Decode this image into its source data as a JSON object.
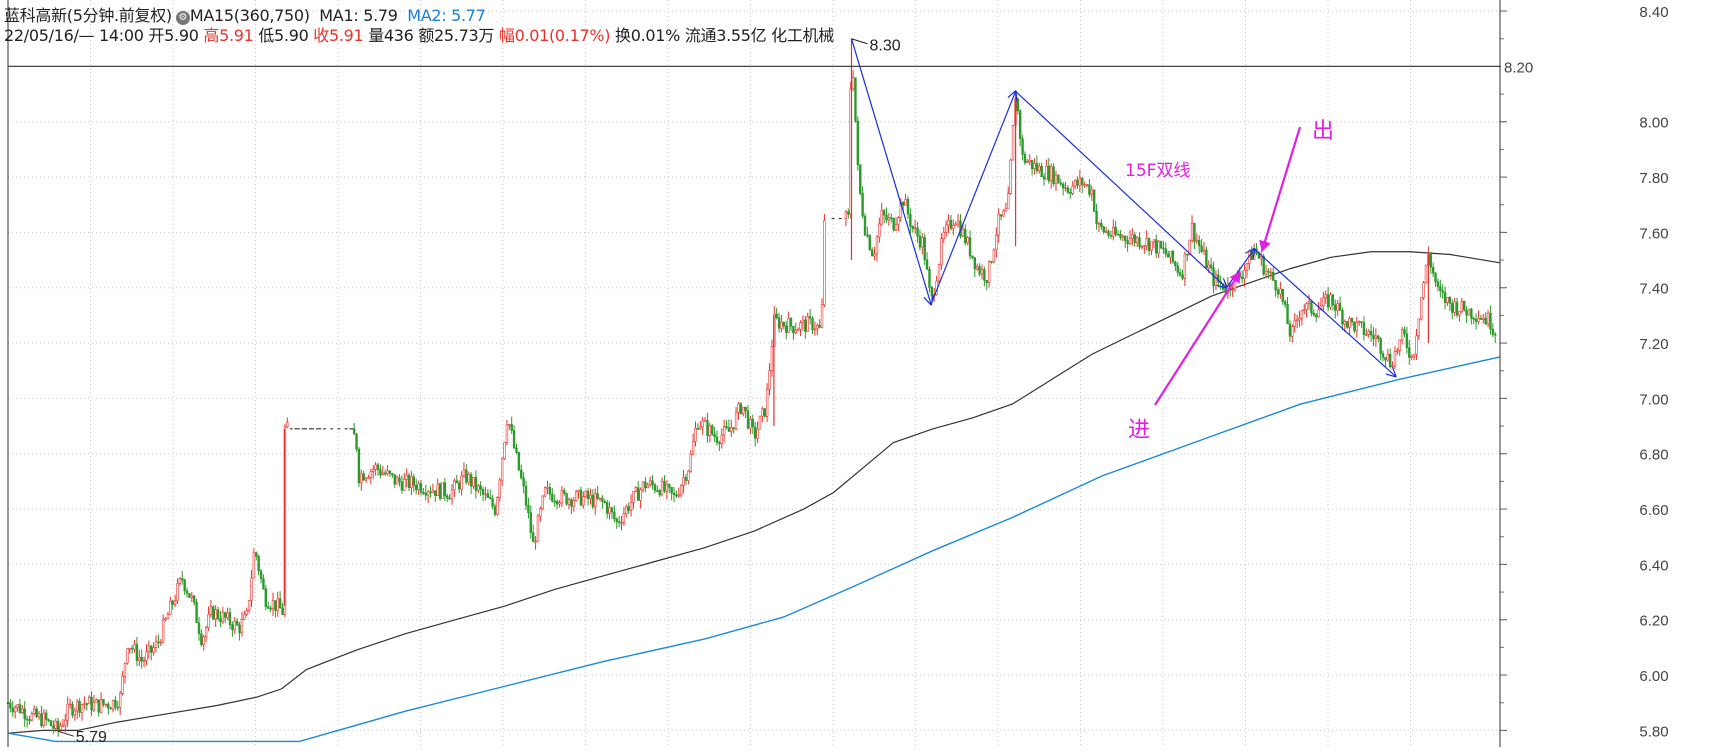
{
  "header": {
    "name": "蓝科高新(5分钟.前复权)",
    "ma15": "MA15(360,750)",
    "ma1": "MA1: 5.79",
    "ma2": "MA2: 5.77",
    "date": "22/05/16/— 14:00",
    "open_label": "开",
    "open": "5.90",
    "high_label": "高",
    "high": "5.91",
    "low_label": "低",
    "low": "5.90",
    "close_label": "收",
    "close": "5.91",
    "vol_label": "量",
    "vol": "436",
    "amount_label": "额",
    "amount": "25.73万",
    "range_label": "幅",
    "range": "0.01(0.17%)",
    "turnover": "换0.01%",
    "float": "流通3.55亿",
    "industry": "化工机械"
  },
  "colors": {
    "up": "#e8322c",
    "down": "#2a9a2a",
    "ma1": "#333333",
    "ma2": "#1a8ad8",
    "trend": "#1a2fd8",
    "annotation": "#e020e0",
    "grid": "#c8c8c8"
  },
  "chart_data": {
    "type": "candlestick",
    "yticks": [
      "8.40",
      "8.20",
      "8.00",
      "7.80",
      "7.60",
      "7.40",
      "7.20",
      "7.00",
      "6.80",
      "6.60",
      "6.40",
      "6.20",
      "6.00",
      "5.80"
    ],
    "ylim": [
      5.74,
      8.44
    ],
    "current_price": "8.20",
    "high_marker": "8.30",
    "low_marker": "5.79",
    "annotations": {
      "entry": "进",
      "exit": "出",
      "note": "15F双线"
    },
    "ma1_path": [
      [
        0,
        5.79
      ],
      [
        35,
        5.8
      ],
      [
        70,
        5.8
      ],
      [
        110,
        5.83
      ],
      [
        160,
        5.86
      ],
      [
        210,
        5.89
      ],
      [
        250,
        5.92
      ],
      [
        275,
        5.95
      ],
      [
        300,
        6.02
      ],
      [
        350,
        6.09
      ],
      [
        400,
        6.15
      ],
      [
        450,
        6.2
      ],
      [
        500,
        6.25
      ],
      [
        550,
        6.31
      ],
      [
        600,
        6.36
      ],
      [
        650,
        6.41
      ],
      [
        700,
        6.46
      ],
      [
        750,
        6.52
      ],
      [
        800,
        6.6
      ],
      [
        830,
        6.66
      ],
      [
        860,
        6.75
      ],
      [
        890,
        6.84
      ],
      [
        930,
        6.89
      ],
      [
        970,
        6.93
      ],
      [
        1010,
        6.98
      ],
      [
        1050,
        7.07
      ],
      [
        1090,
        7.16
      ],
      [
        1130,
        7.23
      ],
      [
        1170,
        7.3
      ],
      [
        1210,
        7.37
      ],
      [
        1250,
        7.42
      ],
      [
        1290,
        7.47
      ],
      [
        1330,
        7.51
      ],
      [
        1370,
        7.53
      ],
      [
        1410,
        7.53
      ],
      [
        1450,
        7.52
      ],
      [
        1500,
        7.49
      ]
    ],
    "ma2_path": [
      [
        0,
        5.79
      ],
      [
        48,
        5.76
      ],
      [
        293,
        5.76
      ],
      [
        400,
        5.87
      ],
      [
        500,
        5.96
      ],
      [
        600,
        6.05
      ],
      [
        700,
        6.13
      ],
      [
        780,
        6.21
      ],
      [
        850,
        6.32
      ],
      [
        930,
        6.45
      ],
      [
        1010,
        6.57
      ],
      [
        1100,
        6.72
      ],
      [
        1200,
        6.85
      ],
      [
        1300,
        6.98
      ],
      [
        1400,
        7.07
      ],
      [
        1500,
        7.15
      ]
    ],
    "price_path": [
      [
        0,
        5.9
      ],
      [
        12,
        5.88
      ],
      [
        24,
        5.85
      ],
      [
        36,
        5.84
      ],
      [
        50,
        5.8
      ],
      [
        62,
        5.88
      ],
      [
        76,
        5.9
      ],
      [
        90,
        5.89
      ],
      [
        105,
        5.9
      ],
      [
        113,
        5.92
      ],
      [
        120,
        6.12
      ],
      [
        135,
        6.05
      ],
      [
        150,
        6.11
      ],
      [
        160,
        6.21
      ],
      [
        175,
        6.35
      ],
      [
        185,
        6.27
      ],
      [
        195,
        6.13
      ],
      [
        205,
        6.23
      ],
      [
        220,
        6.2
      ],
      [
        232,
        6.17
      ],
      [
        240,
        6.21
      ],
      [
        248,
        6.46
      ],
      [
        258,
        6.28
      ],
      [
        270,
        6.25
      ],
      [
        276,
        6.23
      ],
      [
        278,
        6.89
      ],
      [
        300,
        6.86
      ],
      [
        350,
        6.86
      ],
      [
        352,
        6.72
      ],
      [
        370,
        6.75
      ],
      [
        390,
        6.7
      ],
      [
        410,
        6.69
      ],
      [
        430,
        6.67
      ],
      [
        445,
        6.66
      ],
      [
        460,
        6.72
      ],
      [
        475,
        6.66
      ],
      [
        490,
        6.6
      ],
      [
        502,
        6.94
      ],
      [
        510,
        6.8
      ],
      [
        520,
        6.64
      ],
      [
        528,
        6.47
      ],
      [
        540,
        6.66
      ],
      [
        560,
        6.64
      ],
      [
        580,
        6.64
      ],
      [
        600,
        6.62
      ],
      [
        612,
        6.55
      ],
      [
        625,
        6.62
      ],
      [
        640,
        6.69
      ],
      [
        655,
        6.68
      ],
      [
        670,
        6.64
      ],
      [
        685,
        6.76
      ],
      [
        693,
        6.92
      ],
      [
        700,
        6.9
      ],
      [
        712,
        6.86
      ],
      [
        725,
        6.88
      ],
      [
        738,
        6.98
      ],
      [
        750,
        6.86
      ],
      [
        762,
        6.97
      ],
      [
        770,
        7.28
      ],
      [
        790,
        7.26
      ],
      [
        810,
        7.27
      ],
      [
        818,
        7.24
      ],
      [
        820,
        7.65
      ],
      [
        845,
        7.65
      ],
      [
        848,
        8.3
      ],
      [
        855,
        7.78
      ],
      [
        862,
        7.61
      ],
      [
        870,
        7.52
      ],
      [
        878,
        7.66
      ],
      [
        890,
        7.63
      ],
      [
        900,
        7.72
      ],
      [
        910,
        7.61
      ],
      [
        920,
        7.56
      ],
      [
        928,
        7.34
      ],
      [
        940,
        7.58
      ],
      [
        952,
        7.66
      ],
      [
        962,
        7.58
      ],
      [
        975,
        7.47
      ],
      [
        985,
        7.44
      ],
      [
        995,
        7.63
      ],
      [
        1005,
        7.68
      ],
      [
        1013,
        8.11
      ],
      [
        1020,
        7.87
      ],
      [
        1035,
        7.83
      ],
      [
        1050,
        7.81
      ],
      [
        1065,
        7.76
      ],
      [
        1080,
        7.78
      ],
      [
        1090,
        7.75
      ],
      [
        1095,
        7.62
      ],
      [
        1110,
        7.59
      ],
      [
        1130,
        7.58
      ],
      [
        1150,
        7.56
      ],
      [
        1165,
        7.52
      ],
      [
        1180,
        7.45
      ],
      [
        1190,
        7.62
      ],
      [
        1200,
        7.53
      ],
      [
        1212,
        7.43
      ],
      [
        1225,
        7.4
      ],
      [
        1240,
        7.45
      ],
      [
        1253,
        7.54
      ],
      [
        1265,
        7.46
      ],
      [
        1278,
        7.4
      ],
      [
        1290,
        7.22
      ],
      [
        1300,
        7.33
      ],
      [
        1315,
        7.32
      ],
      [
        1330,
        7.36
      ],
      [
        1345,
        7.28
      ],
      [
        1360,
        7.25
      ],
      [
        1375,
        7.22
      ],
      [
        1390,
        7.13
      ],
      [
        1403,
        7.23
      ],
      [
        1412,
        7.14
      ],
      [
        1420,
        7.35
      ],
      [
        1428,
        7.52
      ],
      [
        1438,
        7.38
      ],
      [
        1450,
        7.34
      ],
      [
        1465,
        7.32
      ],
      [
        1480,
        7.3
      ],
      [
        1490,
        7.28
      ],
      [
        1497,
        7.23
      ]
    ],
    "trend_lines": [
      [
        [
          848,
          8.3
        ],
        [
          928,
          7.34
        ],
        [
          1013,
          8.11
        ],
        [
          1225,
          7.4
        ],
        [
          1253,
          7.54
        ],
        [
          1395,
          7.08
        ]
      ]
    ]
  }
}
